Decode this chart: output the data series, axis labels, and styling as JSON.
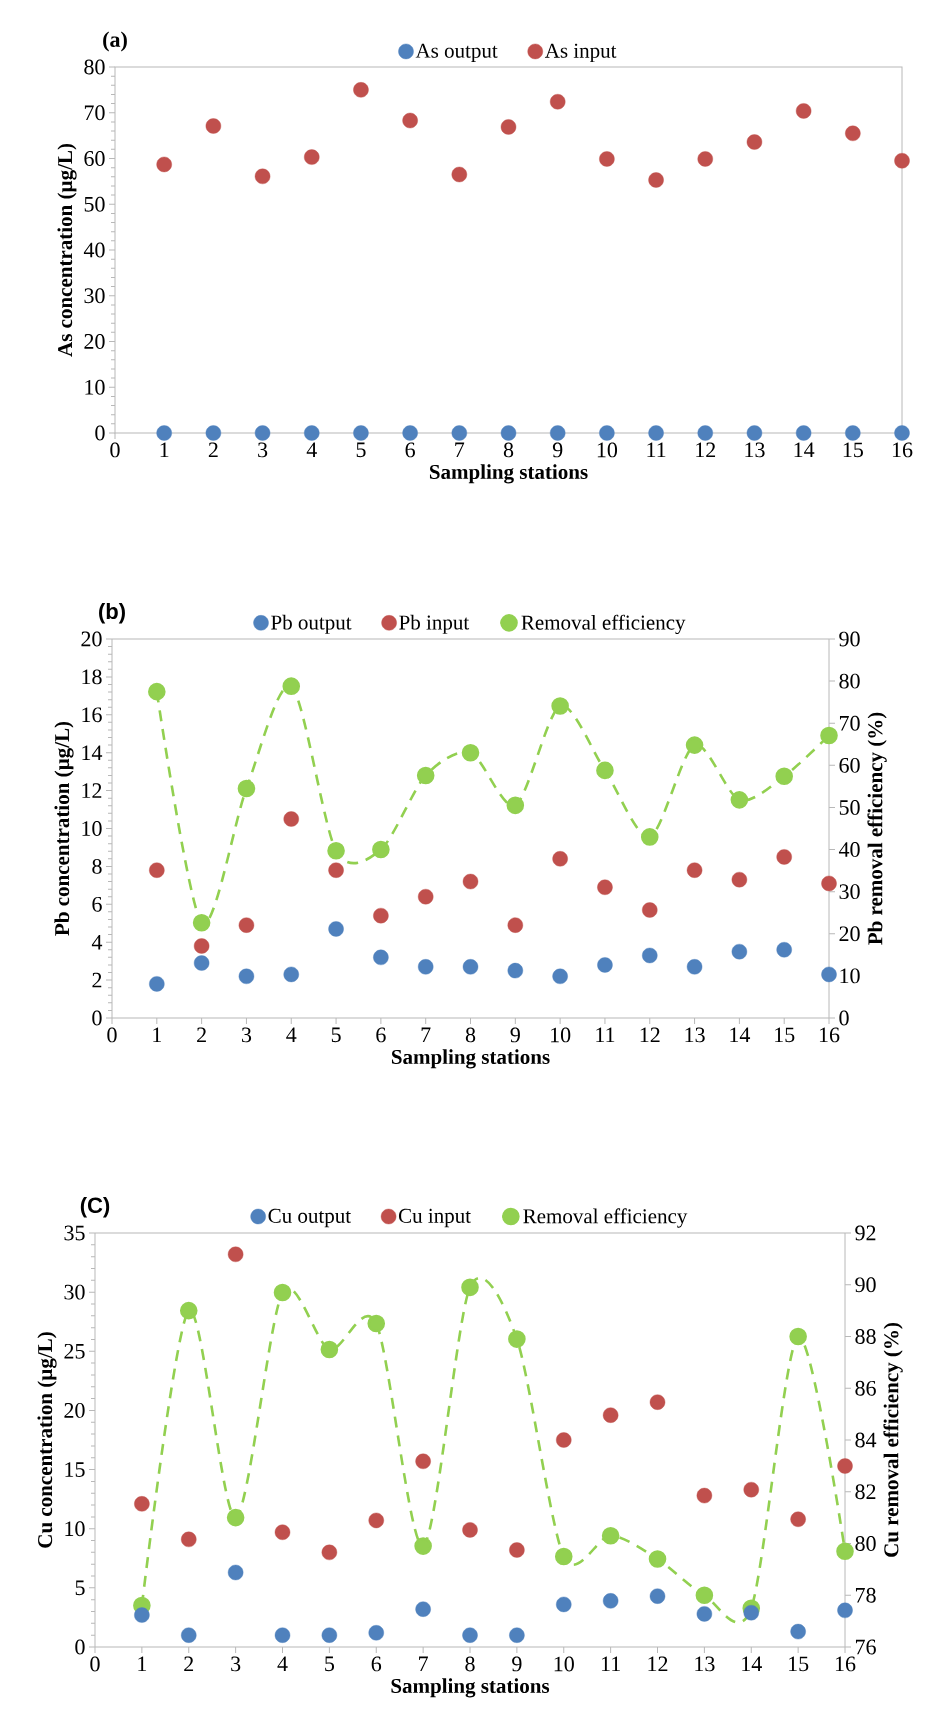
{
  "chart_data": [
    {
      "type": "scatter",
      "title": "(a)",
      "xlabel": "Sampling stations",
      "ylabel": "As concentration (µg/L)",
      "x": [
        1,
        2,
        3,
        4,
        5,
        6,
        7,
        8,
        9,
        10,
        11,
        12,
        13,
        14,
        15,
        16
      ],
      "xlim": [
        0,
        16
      ],
      "xticks": [
        0,
        1,
        2,
        3,
        4,
        5,
        6,
        7,
        8,
        9,
        10,
        11,
        12,
        13,
        14,
        15,
        16
      ],
      "ylim": [
        0,
        80
      ],
      "yticks": [
        0,
        10,
        20,
        30,
        40,
        50,
        60,
        70,
        80
      ],
      "marker": "circle",
      "legend": "top",
      "series": [
        {
          "name": "As output",
          "color": "#4f81bd",
          "values": [
            0,
            0,
            0,
            0,
            0,
            0,
            0,
            0,
            0,
            0,
            0,
            0,
            0,
            0,
            0,
            0
          ]
        },
        {
          "name": "As input",
          "color": "#c0504d",
          "values": [
            58.7,
            67.1,
            56.1,
            60.3,
            75.0,
            68.3,
            56.5,
            66.9,
            72.4,
            59.9,
            55.3,
            59.9,
            63.6,
            70.4,
            65.5,
            59.5
          ]
        }
      ]
    },
    {
      "type": "scatter",
      "title": "(b)",
      "xlabel": "Sampling stations",
      "ylabel": "Pb concentration (µg/L)",
      "y2label": "Pb removal efficiency (%)",
      "x": [
        1,
        2,
        3,
        4,
        5,
        6,
        7,
        8,
        9,
        10,
        11,
        12,
        13,
        14,
        15,
        16
      ],
      "xlim": [
        0,
        16
      ],
      "xticks": [
        0,
        1,
        2,
        3,
        4,
        5,
        6,
        7,
        8,
        9,
        10,
        11,
        12,
        13,
        14,
        15,
        16
      ],
      "ylim": [
        0,
        20
      ],
      "yticks": [
        0,
        2,
        4,
        6,
        8,
        10,
        12,
        14,
        16,
        18,
        20
      ],
      "y2lim": [
        0,
        90
      ],
      "y2ticks": [
        0,
        10,
        20,
        30,
        40,
        50,
        60,
        70,
        80,
        90
      ],
      "marker": "circle",
      "legend": "top",
      "series": [
        {
          "name": "Pb output",
          "color": "#4f81bd",
          "values": [
            1.8,
            2.9,
            2.2,
            2.3,
            4.7,
            3.2,
            2.7,
            2.7,
            2.5,
            2.2,
            2.8,
            3.3,
            2.7,
            3.5,
            3.6,
            2.3
          ]
        },
        {
          "name": "Pb input",
          "color": "#c0504d",
          "values": [
            7.8,
            3.8,
            4.9,
            10.5,
            7.8,
            5.4,
            6.4,
            7.2,
            4.9,
            8.4,
            6.9,
            5.7,
            7.8,
            7.3,
            8.5,
            7.1
          ]
        },
        {
          "name": "Removal efficiency",
          "color": "#92d050",
          "type": "line",
          "line_style": "dashed",
          "axis": "y2",
          "values": [
            77.5,
            22.6,
            54.5,
            78.8,
            39.7,
            40.0,
            57.6,
            63.0,
            50.5,
            74.1,
            58.8,
            43.0,
            64.8,
            51.8,
            57.4,
            67.1
          ]
        }
      ]
    },
    {
      "type": "scatter",
      "title": "(C)",
      "xlabel": "Sampling stations",
      "ylabel": "Cu concentration (µg/L)",
      "y2label": "Cu removal efficiency (%)",
      "x": [
        1,
        2,
        3,
        4,
        5,
        6,
        7,
        8,
        9,
        10,
        11,
        12,
        13,
        14,
        15,
        16
      ],
      "xlim": [
        0,
        16
      ],
      "xticks": [
        0,
        1,
        2,
        3,
        4,
        5,
        6,
        7,
        8,
        9,
        10,
        11,
        12,
        13,
        14,
        15,
        16
      ],
      "ylim": [
        0,
        35
      ],
      "yticks": [
        0,
        5,
        10,
        15,
        20,
        25,
        30,
        35
      ],
      "y2lim": [
        76,
        92
      ],
      "y2ticks": [
        76,
        78,
        80,
        82,
        84,
        86,
        88,
        90,
        92
      ],
      "marker": "circle",
      "legend": "top",
      "series": [
        {
          "name": "Cu output",
          "color": "#4f81bd",
          "values": [
            2.7,
            1.0,
            6.3,
            1.0,
            1.0,
            1.2,
            3.2,
            1.0,
            1.0,
            3.6,
            3.9,
            4.3,
            2.8,
            2.9,
            1.3,
            3.1
          ]
        },
        {
          "name": "Cu input",
          "color": "#c0504d",
          "values": [
            12.1,
            9.1,
            33.2,
            9.7,
            8.0,
            10.7,
            15.7,
            9.9,
            8.2,
            17.5,
            19.6,
            20.7,
            12.8,
            13.3,
            10.8,
            15.3
          ]
        },
        {
          "name": "Removal efficiency",
          "color": "#92d050",
          "type": "line",
          "line_style": "dashed",
          "axis": "y2",
          "values": [
            77.6,
            89.0,
            81.0,
            89.7,
            87.5,
            88.5,
            79.9,
            89.9,
            87.9,
            79.5,
            80.3,
            79.4,
            78.0,
            77.5,
            88.0,
            79.7
          ]
        }
      ]
    }
  ]
}
